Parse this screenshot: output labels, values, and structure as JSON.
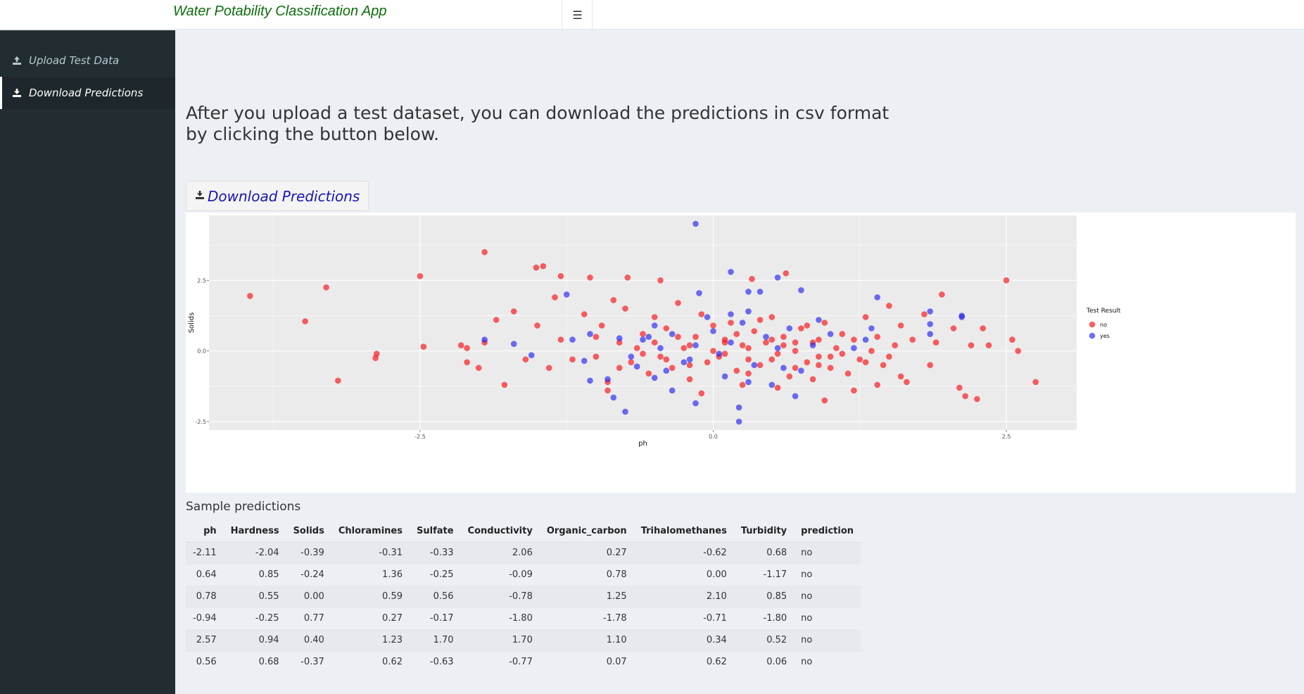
{
  "header": {
    "title": "Water Potability Classification App",
    "toggle_icon": "hamburger-icon"
  },
  "sidebar": {
    "items": [
      {
        "label": "Upload Test Data",
        "icon": "upload-icon",
        "active": false
      },
      {
        "label": "Download Predictions",
        "icon": "download-icon",
        "active": true
      }
    ]
  },
  "main": {
    "intro": "After you upload a test dataset, you can download the predictions in csv format by clicking the button below.",
    "download_button": "Download Predictions",
    "sample_title": "Sample predictions"
  },
  "table": {
    "columns": [
      "ph",
      "Hardness",
      "Solids",
      "Chloramines",
      "Sulfate",
      "Conductivity",
      "Organic_carbon",
      "Trihalomethanes",
      "Turbidity",
      "prediction"
    ],
    "rows": [
      [
        "-2.11",
        "-2.04",
        "-0.39",
        "-0.31",
        "-0.33",
        "2.06",
        "0.27",
        "-0.62",
        "0.68",
        "no"
      ],
      [
        "0.64",
        "0.85",
        "-0.24",
        "1.36",
        "-0.25",
        "-0.09",
        "0.78",
        "0.00",
        "-1.17",
        "no"
      ],
      [
        "0.78",
        "0.55",
        "0.00",
        "0.59",
        "0.56",
        "-0.78",
        "1.25",
        "2.10",
        "0.85",
        "no"
      ],
      [
        "-0.94",
        "-0.25",
        "0.77",
        "0.27",
        "-0.17",
        "-1.80",
        "-1.78",
        "-0.71",
        "-1.80",
        "no"
      ],
      [
        "2.57",
        "0.94",
        "0.40",
        "1.23",
        "1.70",
        "1.70",
        "1.10",
        "0.34",
        "0.52",
        "no"
      ],
      [
        "0.56",
        "0.68",
        "-0.37",
        "0.62",
        "-0.63",
        "-0.77",
        "0.07",
        "0.62",
        "0.06",
        "no"
      ]
    ]
  },
  "chart_data": {
    "type": "scatter",
    "xlabel": "ph",
    "ylabel": "Solids",
    "xlim": [
      -4.3,
      3.1
    ],
    "ylim": [
      -2.8,
      4.8
    ],
    "xticks": [
      -2.5,
      0.0,
      2.5
    ],
    "yticks": [
      -2.5,
      0.0,
      2.5
    ],
    "grid": true,
    "legend": {
      "title": "Test Result",
      "placement": "right"
    },
    "series": [
      {
        "name": "no",
        "color": "#f8161a",
        "points": [
          [
            -3.95,
            1.95
          ],
          [
            -3.48,
            1.05
          ],
          [
            -3.2,
            -1.05
          ],
          [
            -3.3,
            2.25
          ],
          [
            -2.87,
            -0.1
          ],
          [
            -2.88,
            -0.25
          ],
          [
            -2.5,
            2.65
          ],
          [
            -2.47,
            0.15
          ],
          [
            -1.95,
            3.5
          ],
          [
            -1.51,
            2.95
          ],
          [
            -1.45,
            3.0
          ],
          [
            -1.3,
            2.65
          ],
          [
            -1.05,
            2.6
          ],
          [
            -0.73,
            2.6
          ],
          [
            -0.45,
            2.5
          ],
          [
            0.33,
            2.55
          ],
          [
            0.62,
            2.75
          ],
          [
            2.5,
            2.5
          ],
          [
            -2.1,
            0.1
          ],
          [
            -2.15,
            0.2
          ],
          [
            -2.1,
            -0.4
          ],
          [
            -2.0,
            -0.6
          ],
          [
            -1.95,
            0.3
          ],
          [
            -1.85,
            1.1
          ],
          [
            -1.7,
            1.4
          ],
          [
            -1.5,
            0.9
          ],
          [
            -1.78,
            -1.2
          ],
          [
            -1.4,
            -0.6
          ],
          [
            -1.3,
            0.4
          ],
          [
            -1.2,
            -0.3
          ],
          [
            -1.35,
            1.9
          ],
          [
            -1.1,
            1.3
          ],
          [
            -1.0,
            -0.2
          ],
          [
            -0.95,
            0.9
          ],
          [
            -0.9,
            -1.1
          ],
          [
            -0.85,
            1.8
          ],
          [
            -0.8,
            0.3
          ],
          [
            -0.7,
            -0.4
          ],
          [
            -0.75,
            1.5
          ],
          [
            -0.6,
            0.6
          ],
          [
            -0.55,
            -0.8
          ],
          [
            -0.5,
            1.2
          ],
          [
            -0.45,
            -0.2
          ],
          [
            -0.4,
            0.8
          ],
          [
            -0.35,
            -0.6
          ],
          [
            -0.3,
            1.7
          ],
          [
            -0.25,
            0.1
          ],
          [
            -0.2,
            -1.0
          ],
          [
            -0.15,
            0.5
          ],
          [
            -0.1,
            1.3
          ],
          [
            -0.05,
            -0.4
          ],
          [
            0.0,
            0.9
          ],
          [
            0.05,
            -0.2
          ],
          [
            0.1,
            0.4
          ],
          [
            0.15,
            1.0
          ],
          [
            0.2,
            -0.7
          ],
          [
            0.25,
            0.2
          ],
          [
            0.3,
            -0.3
          ],
          [
            0.35,
            0.7
          ],
          [
            0.4,
            -0.5
          ],
          [
            0.45,
            0.3
          ],
          [
            0.5,
            1.2
          ],
          [
            0.55,
            -0.1
          ],
          [
            0.6,
            0.5
          ],
          [
            0.65,
            -0.9
          ],
          [
            0.7,
            0.0
          ],
          [
            0.75,
            0.8
          ],
          [
            0.8,
            -0.4
          ],
          [
            0.85,
            0.3
          ],
          [
            0.9,
            -0.2
          ],
          [
            0.95,
            1.0
          ],
          [
            1.0,
            -0.6
          ],
          [
            1.05,
            0.1
          ],
          [
            1.1,
            0.6
          ],
          [
            1.15,
            -0.8
          ],
          [
            1.2,
            0.4
          ],
          [
            1.25,
            -0.3
          ],
          [
            1.3,
            1.2
          ],
          [
            1.35,
            0.0
          ],
          [
            1.4,
            0.5
          ],
          [
            1.45,
            -0.5
          ],
          [
            1.5,
            1.6
          ],
          [
            1.55,
            0.2
          ],
          [
            1.6,
            0.9
          ],
          [
            1.65,
            -1.1
          ],
          [
            1.7,
            0.4
          ],
          [
            1.8,
            1.3
          ],
          [
            1.85,
            -0.5
          ],
          [
            1.9,
            0.3
          ],
          [
            1.95,
            2.0
          ],
          [
            2.05,
            0.8
          ],
          [
            2.1,
            -1.3
          ],
          [
            2.15,
            -1.6
          ],
          [
            2.2,
            0.2
          ],
          [
            2.25,
            -1.7
          ],
          [
            2.3,
            0.8
          ],
          [
            2.35,
            0.2
          ],
          [
            2.55,
            0.4
          ],
          [
            2.6,
            0.0
          ],
          [
            2.75,
            -1.1
          ],
          [
            -0.3,
            0.5
          ],
          [
            -0.2,
            0.2
          ],
          [
            0.1,
            -0.1
          ],
          [
            0.2,
            0.6
          ],
          [
            0.3,
            -0.8
          ],
          [
            0.4,
            1.1
          ],
          [
            0.5,
            -0.3
          ],
          [
            0.6,
            0.2
          ],
          [
            0.7,
            -0.6
          ],
          [
            0.8,
            0.9
          ],
          [
            0.9,
            0.4
          ],
          [
            1.0,
            -0.2
          ],
          [
            -0.6,
            -0.1
          ],
          [
            -0.5,
            0.3
          ],
          [
            -0.4,
            -0.3
          ],
          [
            -0.2,
            -0.5
          ],
          [
            0.0,
            0.0
          ],
          [
            0.1,
            0.3
          ],
          [
            0.3,
            0.1
          ],
          [
            0.5,
            0.4
          ],
          [
            0.7,
            0.3
          ],
          [
            0.9,
            -0.5
          ],
          [
            1.1,
            -0.1
          ],
          [
            -1.0,
            0.5
          ],
          [
            -0.8,
            -0.6
          ],
          [
            -0.65,
            0.1
          ],
          [
            1.3,
            -0.4
          ],
          [
            1.5,
            -0.2
          ],
          [
            -1.6,
            -0.3
          ],
          [
            0.85,
            -1.0
          ],
          [
            1.2,
            -1.4
          ],
          [
            -0.9,
            -1.4
          ],
          [
            0.25,
            -1.2
          ],
          [
            0.55,
            -1.3
          ],
          [
            0.95,
            -1.75
          ],
          [
            -0.1,
            -1.5
          ],
          [
            1.6,
            -0.9
          ],
          [
            1.4,
            -1.2
          ]
        ]
      },
      {
        "name": "yes",
        "color": "#2b2bf0",
        "points": [
          [
            -0.15,
            4.5
          ],
          [
            0.15,
            2.8
          ],
          [
            0.55,
            2.6
          ],
          [
            0.75,
            2.15
          ],
          [
            0.3,
            2.1
          ],
          [
            0.4,
            2.1
          ],
          [
            -0.12,
            2.05
          ],
          [
            -1.25,
            2.0
          ],
          [
            1.4,
            1.9
          ],
          [
            1.85,
            1.4
          ],
          [
            2.12,
            1.25
          ],
          [
            2.12,
            1.2
          ],
          [
            -0.05,
            1.2
          ],
          [
            0.15,
            1.3
          ],
          [
            0.3,
            1.4
          ],
          [
            0.9,
            1.1
          ],
          [
            1.35,
            0.8
          ],
          [
            1.85,
            0.95
          ],
          [
            -1.95,
            0.4
          ],
          [
            -1.55,
            -0.15
          ],
          [
            -1.2,
            0.4
          ],
          [
            -1.05,
            0.6
          ],
          [
            -0.8,
            0.45
          ],
          [
            -0.7,
            -0.2
          ],
          [
            -0.6,
            0.4
          ],
          [
            -0.5,
            0.9
          ],
          [
            -0.45,
            0.1
          ],
          [
            -0.35,
            0.6
          ],
          [
            -0.25,
            -0.4
          ],
          [
            -0.15,
            0.2
          ],
          [
            0.0,
            0.7
          ],
          [
            0.05,
            -0.1
          ],
          [
            0.15,
            0.3
          ],
          [
            0.25,
            1.0
          ],
          [
            0.35,
            -0.5
          ],
          [
            0.45,
            0.5
          ],
          [
            0.55,
            0.1
          ],
          [
            0.65,
            0.8
          ],
          [
            0.75,
            -0.7
          ],
          [
            0.85,
            0.2
          ],
          [
            1.0,
            0.6
          ],
          [
            1.2,
            0.1
          ],
          [
            1.3,
            0.4
          ],
          [
            1.85,
            0.6
          ],
          [
            -0.35,
            -1.4
          ],
          [
            -0.9,
            -1.0
          ],
          [
            -0.85,
            -1.65
          ],
          [
            -0.75,
            -2.15
          ],
          [
            -0.15,
            -1.85
          ],
          [
            0.22,
            -2.0
          ],
          [
            0.22,
            -2.5
          ],
          [
            0.7,
            -1.6
          ],
          [
            -1.05,
            -1.05
          ],
          [
            -0.5,
            -0.95
          ],
          [
            0.3,
            -1.1
          ],
          [
            -1.1,
            -0.35
          ],
          [
            -0.4,
            -0.7
          ],
          [
            0.1,
            -0.9
          ],
          [
            0.5,
            -1.2
          ],
          [
            -0.65,
            -0.55
          ],
          [
            -0.2,
            -0.3
          ],
          [
            0.6,
            -0.6
          ],
          [
            -1.7,
            0.25
          ],
          [
            -0.55,
            0.5
          ]
        ]
      }
    ]
  }
}
